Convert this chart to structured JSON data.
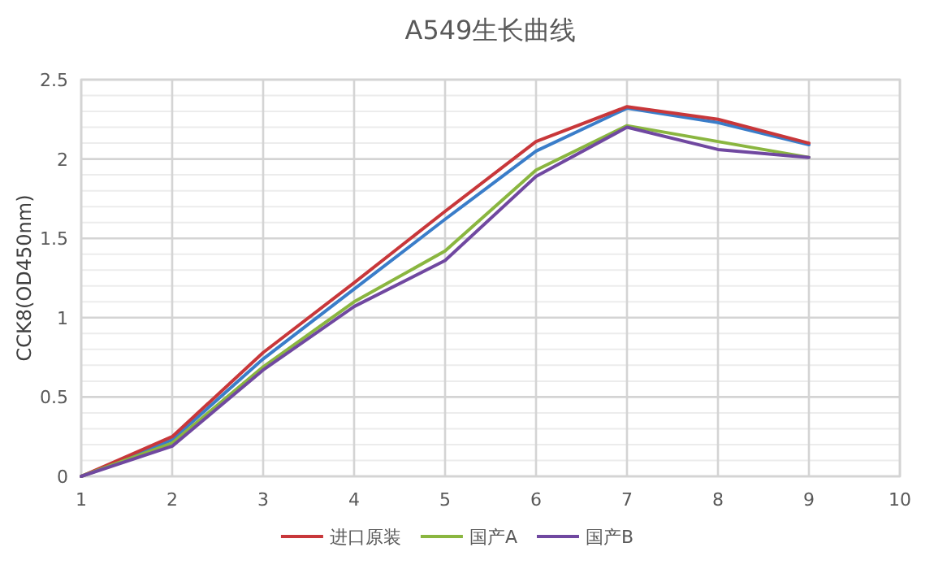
{
  "chart_data": {
    "type": "line",
    "title": "A549生长曲线",
    "ylabel": "CCK8(OD450nm)",
    "x": [
      1,
      2,
      3,
      4,
      5,
      6,
      7,
      8,
      9
    ],
    "xlim": [
      1,
      10
    ],
    "xticks": [
      1,
      2,
      3,
      4,
      5,
      6,
      7,
      8,
      9,
      10
    ],
    "ylim": [
      0,
      2.5
    ],
    "yticks": [
      0,
      0.5,
      1,
      1.5,
      2,
      2.5
    ],
    "grid": true,
    "legend": "bottom",
    "marker": "none",
    "line_style": "solid",
    "series": [
      {
        "color": "#3a7dc9",
        "values": [
          0,
          0.23,
          0.74,
          1.18,
          1.62,
          2.05,
          2.32,
          2.23,
          2.09
        ]
      },
      {
        "name": "进口原装",
        "color": "#c8373a",
        "values": [
          0,
          0.25,
          0.78,
          1.22,
          1.67,
          2.11,
          2.33,
          2.25,
          2.1
        ]
      },
      {
        "name": "国产A",
        "color": "#8ab640",
        "values": [
          0,
          0.21,
          0.69,
          1.1,
          1.42,
          1.93,
          2.21,
          2.11,
          2.01
        ]
      },
      {
        "name": "国产B",
        "color": "#7048a0",
        "values": [
          0,
          0.19,
          0.67,
          1.07,
          1.36,
          1.89,
          2.2,
          2.06,
          2.01
        ]
      }
    ]
  }
}
